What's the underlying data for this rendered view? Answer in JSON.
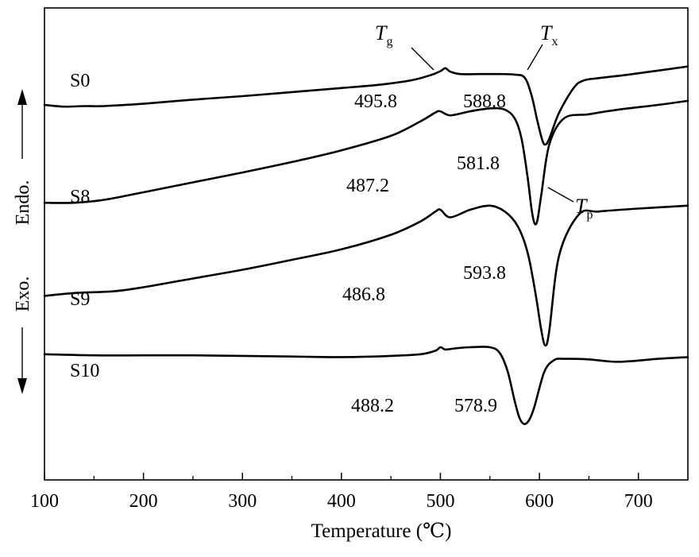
{
  "chart_data": {
    "type": "line",
    "title": "",
    "xlabel": "Temperature (℃)",
    "ylabel_top": "Endo.",
    "ylabel_bottom": "Exo.",
    "xlim": [
      100,
      750
    ],
    "x_ticks": [
      100,
      200,
      300,
      400,
      500,
      600,
      700
    ],
    "grid": false,
    "legend": "none",
    "series": [
      {
        "name": "S0",
        "x": [
          100,
          120,
          140,
          160,
          200,
          250,
          300,
          350,
          400,
          440,
          470,
          490,
          500,
          505,
          510,
          520,
          540,
          560,
          575,
          585,
          592,
          598,
          603,
          606,
          610,
          620,
          635,
          645,
          660,
          690,
          720,
          750
        ],
        "y": [
          3.22,
          3.25,
          3.24,
          3.24,
          3.2,
          3.13,
          3.07,
          3.0,
          2.93,
          2.87,
          2.8,
          2.71,
          2.64,
          2.59,
          2.65,
          2.69,
          2.69,
          2.69,
          2.7,
          2.75,
          3.05,
          3.5,
          3.83,
          3.9,
          3.8,
          3.35,
          2.92,
          2.8,
          2.76,
          2.7,
          2.63,
          2.56
        ],
        "annotations": [
          {
            "label": "T_g",
            "text": "495.8",
            "x": 495.8
          },
          {
            "label": "T_x",
            "text": "588.8",
            "x": 588.8
          },
          {
            "label": "T_p",
            "x": 606
          }
        ]
      },
      {
        "name": "S8",
        "x": [
          100,
          130,
          160,
          200,
          250,
          300,
          350,
          400,
          450,
          480,
          495,
          500,
          510,
          530,
          550,
          565,
          575,
          582,
          588,
          592,
          595,
          598,
          602,
          610,
          625,
          650,
          680,
          720,
          750
        ],
        "y": [
          4.9,
          4.9,
          4.85,
          4.72,
          4.55,
          4.38,
          4.2,
          4.0,
          3.75,
          3.5,
          3.35,
          3.33,
          3.4,
          3.33,
          3.28,
          3.3,
          3.45,
          3.8,
          4.45,
          5.0,
          5.25,
          5.2,
          4.75,
          3.9,
          3.45,
          3.38,
          3.3,
          3.22,
          3.15
        ],
        "annotations": [
          {
            "text": "487.2",
            "x": 487.2
          },
          {
            "text": "581.8",
            "x": 581.8
          }
        ]
      },
      {
        "name": "S9",
        "x": [
          100,
          130,
          170,
          200,
          250,
          300,
          350,
          400,
          450,
          480,
          495,
          500,
          510,
          530,
          550,
          565,
          578,
          588,
          596,
          602,
          606,
          610,
          620,
          640,
          660,
          700,
          750
        ],
        "y": [
          6.5,
          6.45,
          6.42,
          6.35,
          6.2,
          6.05,
          5.88,
          5.7,
          5.45,
          5.22,
          5.05,
          5.02,
          5.15,
          5.02,
          4.95,
          5.05,
          5.3,
          5.75,
          6.45,
          7.1,
          7.35,
          7.1,
          5.8,
          5.1,
          5.05,
          5.0,
          4.95
        ],
        "annotations": [
          {
            "text": "486.8",
            "x": 486.8
          },
          {
            "text": "593.8",
            "x": 593.8
          }
        ]
      },
      {
        "name": "S10",
        "x": [
          100,
          150,
          200,
          250,
          300,
          350,
          400,
          450,
          480,
          495,
          500,
          505,
          515,
          530,
          550,
          560,
          568,
          575,
          580,
          585,
          590,
          595,
          605,
          615,
          625,
          650,
          680,
          720,
          750
        ],
        "y": [
          7.5,
          7.52,
          7.52,
          7.52,
          7.53,
          7.54,
          7.55,
          7.53,
          7.5,
          7.44,
          7.38,
          7.42,
          7.4,
          7.38,
          7.38,
          7.48,
          7.8,
          8.3,
          8.6,
          8.7,
          8.62,
          8.4,
          7.8,
          7.6,
          7.58,
          7.59,
          7.63,
          7.58,
          7.55
        ],
        "annotations": [
          {
            "text": "488.2",
            "x": 488.2
          },
          {
            "text": "578.9",
            "x": 578.9
          }
        ]
      }
    ]
  }
}
